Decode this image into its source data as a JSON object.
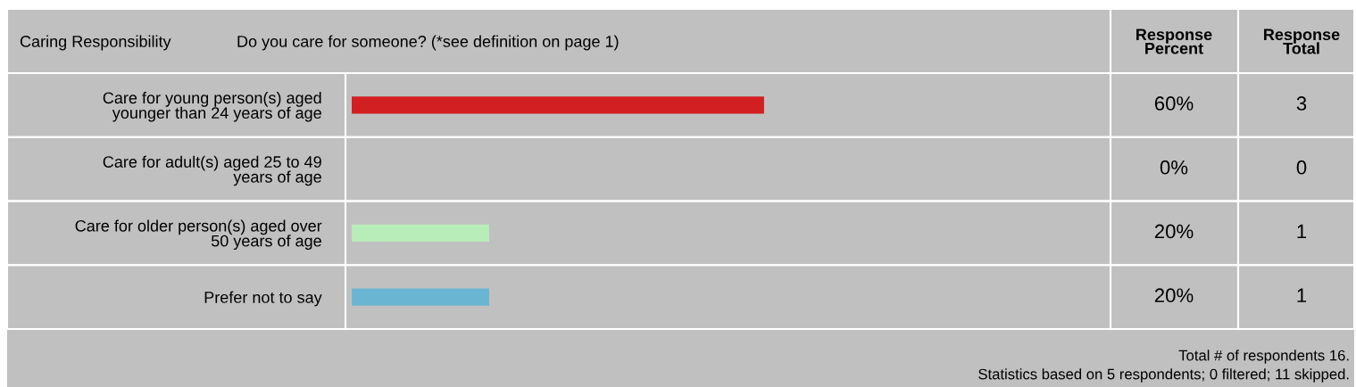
{
  "chart_data": {
    "type": "bar",
    "orientation": "horizontal",
    "title": "Caring Responsibility",
    "subtitle": "Do you care for someone? (*see definition on page 1)",
    "categories": [
      "Care for young person(s) aged\nyounger than 24 years of age",
      "Care for adult(s) aged 25 to 49\nyears of age",
      "Care for older person(s) aged over\n50 years of age",
      "Prefer not to say"
    ],
    "values": [
      60,
      0,
      20,
      20
    ],
    "colors": [
      "#d21f22",
      "#c0c0c0",
      "#b8ecb8",
      "#6ab6d2"
    ],
    "value_labels": [
      "60%",
      "0%",
      "20%",
      "20%"
    ],
    "tick_labels": "y",
    "grid": false,
    "legend": false,
    "annotations": [
      "Response Percent",
      "Response Total",
      "3",
      "0",
      "1",
      "1",
      "Total # of respondents 16.",
      "Statistics based on 5 respondents; 0 filtered; 11 skipped."
    ]
  }
}
